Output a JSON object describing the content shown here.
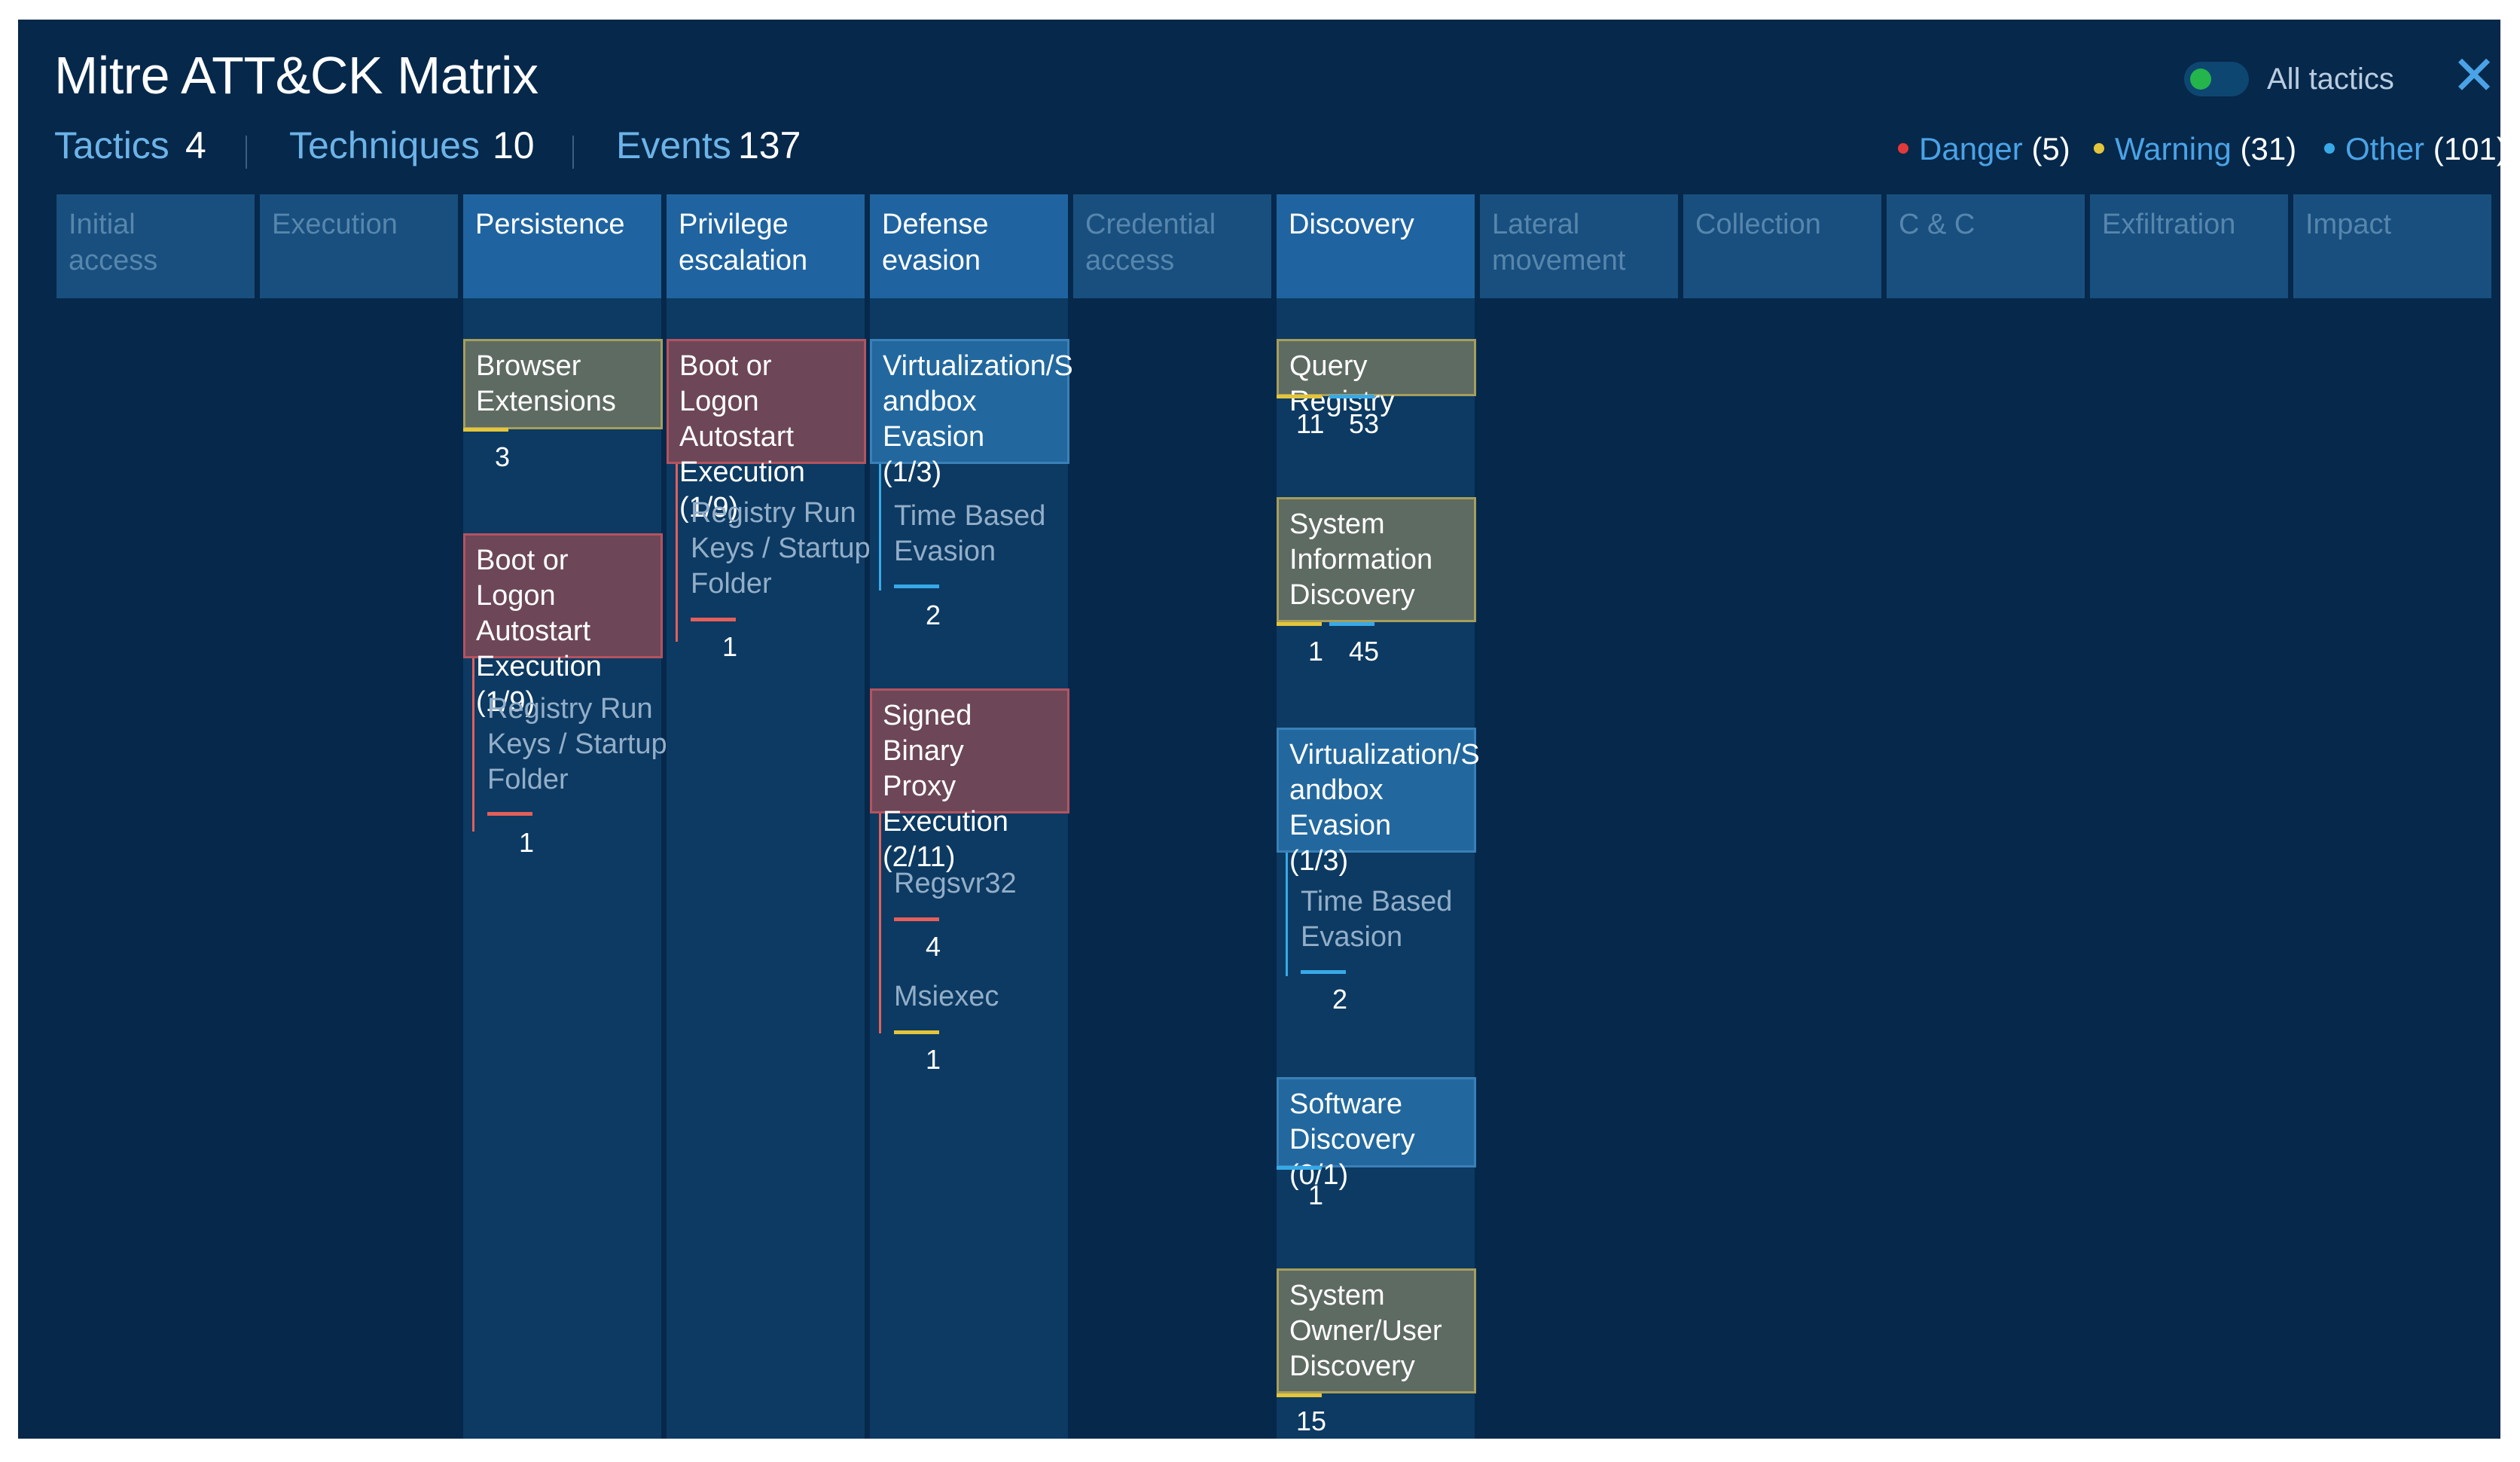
{
  "title": "Mitre ATT&CK Matrix",
  "stats": {
    "tactics_label": "Tactics",
    "tactics_value": "4",
    "techniques_label": "Techniques",
    "techniques_value": "10",
    "events_label": "Events",
    "events_value": "137"
  },
  "toggle": {
    "label": "All tactics",
    "on": true
  },
  "close_icon": "close-icon",
  "legend": {
    "danger": {
      "label": "Danger",
      "count": "(5)",
      "color": "#e23a3a"
    },
    "warning": {
      "label": "Warning",
      "count": "(31)",
      "color": "#e3c53c"
    },
    "other": {
      "label": "Other",
      "count": "(101)",
      "color": "#38a9e8"
    }
  },
  "tactics": [
    {
      "line1": "Initial",
      "line2": "access",
      "active": false
    },
    {
      "line1": "Execution",
      "line2": "",
      "active": false
    },
    {
      "line1": "Persistence",
      "line2": "",
      "active": true
    },
    {
      "line1": "Privilege",
      "line2": "escalation",
      "active": true
    },
    {
      "line1": "Defense",
      "line2": "evasion",
      "active": true
    },
    {
      "line1": "Credential",
      "line2": "access",
      "active": false
    },
    {
      "line1": "Discovery",
      "line2": "",
      "active": true
    },
    {
      "line1": "Lateral",
      "line2": "movement",
      "active": false
    },
    {
      "line1": "Collection",
      "line2": "",
      "active": false
    },
    {
      "line1": "C & C",
      "line2": "",
      "active": false
    },
    {
      "line1": "Exfiltration",
      "line2": "",
      "active": false
    },
    {
      "line1": "Impact",
      "line2": "",
      "active": false
    }
  ],
  "persistence": {
    "browser_ext": {
      "lines": [
        "Browser",
        "Extensions"
      ],
      "count": "3"
    },
    "boot": {
      "lines": [
        "Boot or Logon",
        "Autostart",
        "Execution (1/9)"
      ]
    },
    "registry": {
      "lines": [
        "Registry Run",
        "Keys / Startup",
        "Folder"
      ],
      "count": "1"
    }
  },
  "privilege": {
    "boot": {
      "lines": [
        "Boot or Logon",
        "Autostart",
        "Execution (1/9)"
      ]
    },
    "registry": {
      "lines": [
        "Registry Run",
        "Keys / Startup",
        "Folder"
      ],
      "count": "1"
    }
  },
  "defense": {
    "virt": {
      "lines": [
        "Virtualization/S",
        "andbox Evasion",
        "(1/3)"
      ]
    },
    "time": {
      "lines": [
        "Time Based",
        "Evasion"
      ],
      "count": "2"
    },
    "signed": {
      "lines": [
        "Signed Binary",
        "Proxy Execution",
        "(2/11)"
      ]
    },
    "regsvr": {
      "label": "Regsvr32",
      "count": "4"
    },
    "msiexec": {
      "label": "Msiexec",
      "count": "1"
    }
  },
  "discovery": {
    "query": {
      "lines": [
        "Query Registry"
      ],
      "count_a": "11",
      "count_b": "53"
    },
    "sysinfo": {
      "lines": [
        "System",
        "Information",
        "Discovery"
      ],
      "count_a": "1",
      "count_b": "45"
    },
    "virt": {
      "lines": [
        "Virtualization/S",
        "andbox Evasion",
        "(1/3)"
      ]
    },
    "time": {
      "lines": [
        "Time Based",
        "Evasion"
      ],
      "count": "2"
    },
    "software": {
      "lines": [
        "Software",
        "Discovery (0/1)"
      ],
      "count": "1"
    },
    "owner": {
      "lines": [
        "System",
        "Owner/User",
        "Discovery"
      ],
      "count": "15"
    }
  }
}
